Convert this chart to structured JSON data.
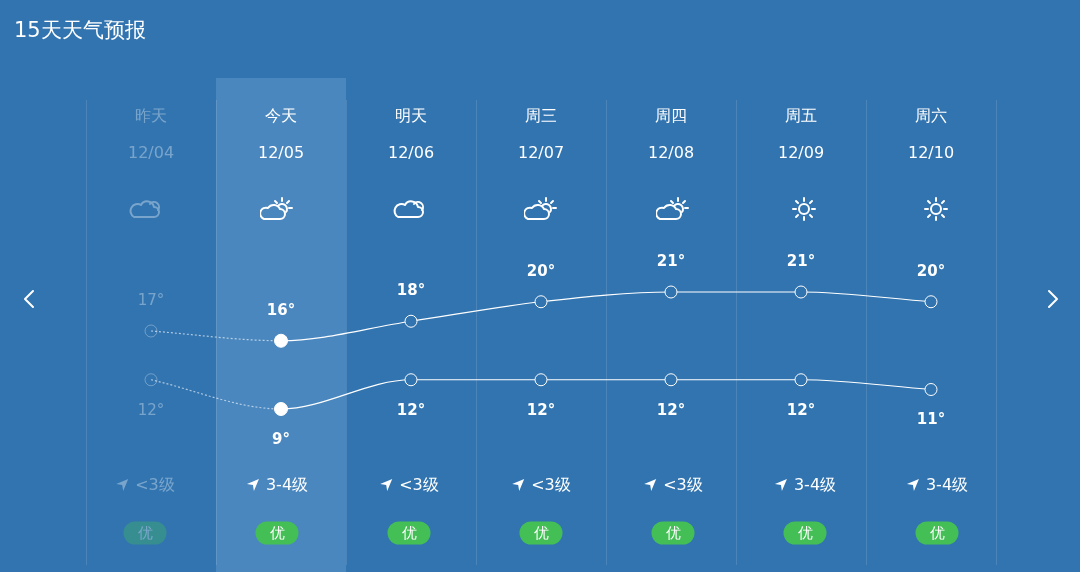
{
  "chart_data": {
    "type": "line",
    "title": "15天天气预报",
    "categories": [
      "昨天\n12/04",
      "今天\n12/05",
      "明天\n12/06",
      "周三\n12/07",
      "周四\n12/08",
      "周五\n12/09",
      "周六\n12/10"
    ],
    "series": [
      {
        "color": "#ffffff",
        "values": [
          17,
          16,
          18,
          20,
          21,
          21,
          20
        ],
        "value_labels": [
          "17°",
          "16°",
          "18°",
          "20°",
          "21°",
          "21°",
          "20°"
        ]
      },
      {
        "color": "#ffffff",
        "values": [
          12,
          9,
          12,
          12,
          12,
          12,
          11
        ],
        "value_labels": [
          "12°",
          "9°",
          "12°",
          "12°",
          "12°",
          "12°",
          "11°"
        ]
      }
    ],
    "ylim": [
      -7,
      33
    ],
    "tick_labels": "x",
    "grid": "x",
    "legend": false,
    "marker": "circle",
    "line_style": "solid",
    "bands": [
      {
        "axis": "x",
        "from": "今天\n12/05",
        "to": "今天\n12/05",
        "color": "#4a87bf"
      }
    ],
    "annotations": [
      "<3级",
      "3-4级",
      "<3级",
      "<3级",
      "<3级",
      "3-4级",
      "3-4级",
      "优",
      "优",
      "优",
      "优",
      "优",
      "优",
      "优"
    ]
  }
}
